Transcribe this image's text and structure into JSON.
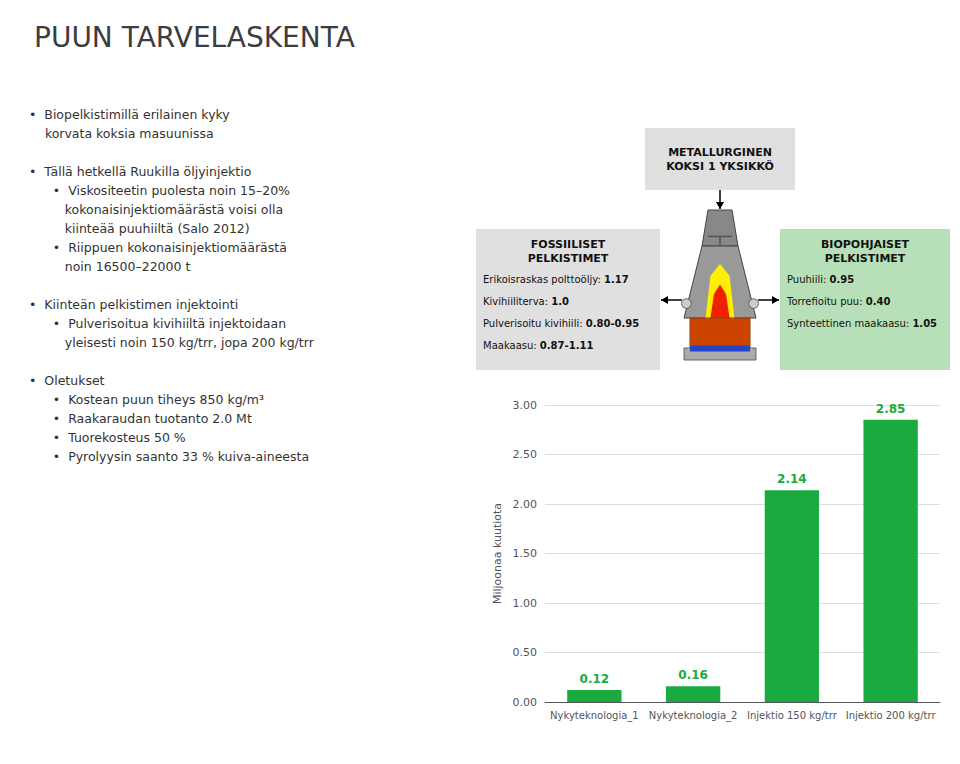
{
  "chart_data": {
    "type": "bar",
    "title": "PUUN TARVELASKENTA",
    "categories": [
      "Nykyteknologia_1",
      "Nykyteknologia_2",
      "Injektio 150 kg/trr",
      "Injektio 200 kg/trr"
    ],
    "values": [
      0.12,
      0.16,
      2.14,
      2.85
    ],
    "color": "#1aaa40",
    "ylabel": "Miljoonaa kuutiota",
    "ylim": [
      0.0,
      3.0
    ],
    "yticks": [
      {
        "value": 0.0,
        "label": "0.00"
      },
      {
        "value": 0.5,
        "label": "0.50"
      },
      {
        "value": 1.0,
        "label": "1.00"
      },
      {
        "value": 1.5,
        "label": "1.50"
      },
      {
        "value": 2.0,
        "label": "2.00"
      },
      {
        "value": 2.5,
        "label": "2.50"
      },
      {
        "value": 3.0,
        "label": "3.00"
      }
    ],
    "grid": true,
    "data_labels": true,
    "annotations": [
      {
        "text": "•  Biopelkistimillä erilainen kyky\n    korvata koksia masuunissa\n\n•  Tällä hetkellä Ruukilla öljyinjektio\n      •  Viskositeetin puolesta noin 15–20%\n         kokonaisinjektiomäärästä voisi olla\n         kiinteää puuhiiltä (Salo 2012)\n      •  Riippuen kokonaisinjektiomäärästä\n         noin 16500–22000 t\n\n•  Kiinteän pelkistimen injektointi\n      •  Pulverisoitua kivihiiltä injektoidaan\n         yleisesti noin 150 kg/trr, jopa 200 kg/trr\n\n•  Oletukset\n      •  Kostean puun tiheys 850 kg/m³\n      •  Raakaraudan tuotanto 2.0 Mt\n      •  Tuorekosteus 50 %\n      •  Pyrolyysin saanto 33 % kuiva-aineesta"
      },
      {
        "text": "FOSSIILISET\nPELKISTIMET\nErikoisraskas polttoöljy: 1.17\nKivihiiliterva: 1.0\nPulverisoitu kivihiili: 0.80-0.95\nMaakaasu: 0.87-1.11",
        "color": "#e0e0e0"
      },
      {
        "text": "BIOPOHJAISET\nPELKISTIMET\nPuuhiili: 0.95\nTorrefioitu puu: 0.40\nSynteettinen maakaasu: 1.05",
        "color": "#b8e0b8"
      },
      {
        "text": "METALLURGINEN\nKOKSI 1 YKSIKKÖ",
        "color": "#e0e0e0"
      }
    ]
  }
}
